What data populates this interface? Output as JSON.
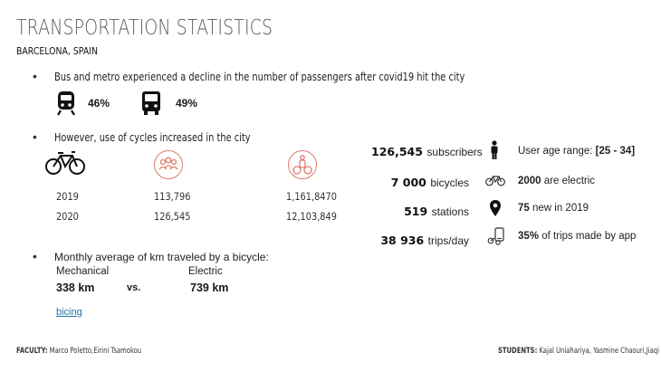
{
  "header": {
    "title": "TRANSPORTATION STATISTICS",
    "subtitle": "BARCELONA, SPAIN"
  },
  "section_decline": {
    "text": "Bus and metro experienced a  decline in the number of passengers after covid19 hit the city",
    "metro_percent": "46%",
    "bus_percent": "49%"
  },
  "section_cycles": {
    "text": "However, use of cycles increased in the city",
    "rows": [
      {
        "year": "2019",
        "col_a": "113,796",
        "col_b": "1,161,8470"
      },
      {
        "year": "2020",
        "col_a": "126,545",
        "col_b": "12,103,849"
      }
    ]
  },
  "bicing": {
    "stats": [
      {
        "number": "126,545",
        "label": "subscribers",
        "icon": "person-icon",
        "note_bold": "",
        "note": "User age range: ",
        "note_tail_bold": "[25 - 34]"
      },
      {
        "number": "7 000",
        "label": "bicycles",
        "icon": "bicycle-icon",
        "note_bold": "2000",
        "note": " are electric",
        "note_tail_bold": ""
      },
      {
        "number": "519",
        "label": "stations",
        "icon": "location-pin-icon",
        "note_bold": "75",
        "note": " new in 2019",
        "note_tail_bold": ""
      },
      {
        "number": "38 936",
        "label": "trips/day",
        "icon": "phone-app-icon",
        "note_bold": "35%",
        "note": " of trips made by app",
        "note_tail_bold": ""
      }
    ]
  },
  "section_km": {
    "text": "Monthly average of km traveled by a bicycle:",
    "mechanical_label": "Mechanical",
    "electric_label": "Electric",
    "mechanical_value": "338 km",
    "vs": "vs.",
    "electric_value": "739 km"
  },
  "link": {
    "label": "bicing"
  },
  "footer": {
    "faculty_label": "FACULTY:",
    "faculty_names": " Marco Poletto,Eirini Tsamokou",
    "students_label": "STUDENTS:",
    "students_names": " Kajal Uniahariya, Yasmine Chaouri,Jiaqi Sun"
  },
  "colors": {
    "accent": "#e07a6e",
    "link": "#1a73a8"
  }
}
